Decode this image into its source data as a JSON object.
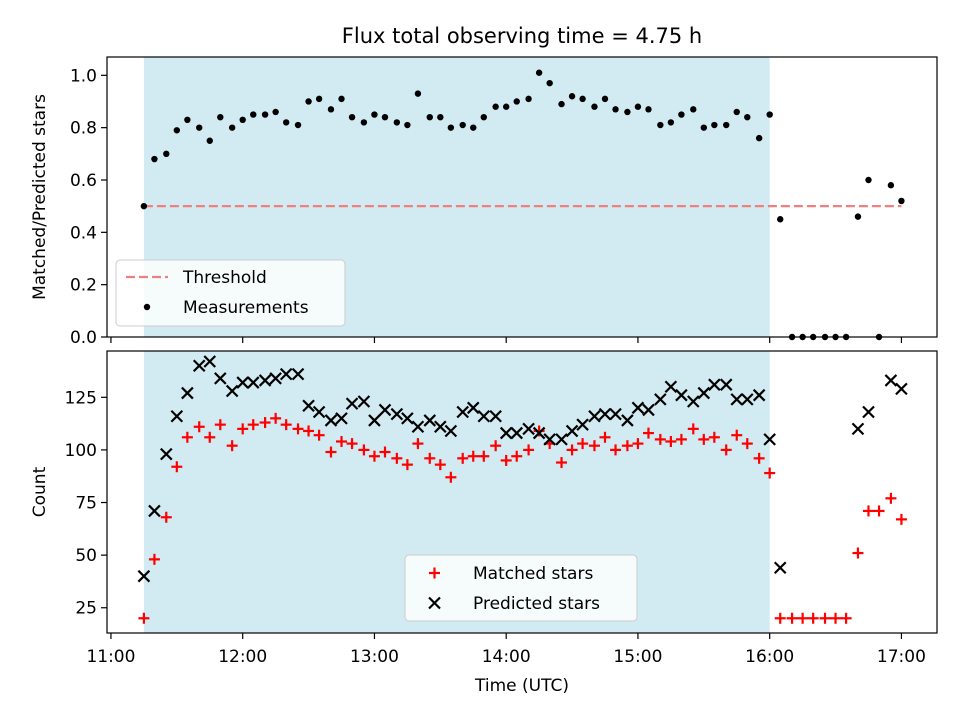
{
  "chart_data": {
    "title": "Flux total observing time = 4.75 h",
    "xlabel": "Time (UTC)",
    "x_unit": "hours (UTC)",
    "xlim": [
      10.97,
      17.27
    ],
    "x_ticks": [
      {
        "value": 11,
        "label": "11:00"
      },
      {
        "value": 12,
        "label": "12:00"
      },
      {
        "value": 13,
        "label": "13:00"
      },
      {
        "value": 14,
        "label": "14:00"
      },
      {
        "value": 15,
        "label": "15:00"
      },
      {
        "value": 16,
        "label": "16:00"
      },
      {
        "value": 17,
        "label": "17:00"
      }
    ],
    "observing_span": [
      11.25,
      16.0
    ],
    "colors": {
      "span": "#add8e6",
      "threshold": "#f08080",
      "measurements": "#000000",
      "matched": "#ff0000",
      "predicted": "#000000"
    },
    "panels": [
      {
        "id": "ratio",
        "type": "scatter",
        "ylabel": "Matched/Predicted stars",
        "ylim": [
          0,
          1.07
        ],
        "y_ticks": [
          "0.0",
          "0.2",
          "0.4",
          "0.6",
          "0.8",
          "1.0"
        ],
        "legend_position": "lower-left",
        "threshold": {
          "name": "Threshold",
          "y": 0.5,
          "x_range": [
            11.25,
            17.0
          ]
        },
        "series": [
          {
            "name": "Measurements",
            "marker": "dot",
            "points": [
              [
                11.25,
                0.5
              ],
              [
                11.33,
                0.68
              ],
              [
                11.42,
                0.7
              ],
              [
                11.5,
                0.79
              ],
              [
                11.58,
                0.83
              ],
              [
                11.67,
                0.8
              ],
              [
                11.75,
                0.75
              ],
              [
                11.83,
                0.84
              ],
              [
                11.92,
                0.8
              ],
              [
                12.0,
                0.83
              ],
              [
                12.08,
                0.85
              ],
              [
                12.17,
                0.85
              ],
              [
                12.25,
                0.86
              ],
              [
                12.33,
                0.82
              ],
              [
                12.42,
                0.81
              ],
              [
                12.5,
                0.9
              ],
              [
                12.58,
                0.91
              ],
              [
                12.67,
                0.87
              ],
              [
                12.75,
                0.91
              ],
              [
                12.83,
                0.84
              ],
              [
                12.92,
                0.82
              ],
              [
                13.0,
                0.85
              ],
              [
                13.08,
                0.84
              ],
              [
                13.17,
                0.82
              ],
              [
                13.25,
                0.81
              ],
              [
                13.33,
                0.93
              ],
              [
                13.42,
                0.84
              ],
              [
                13.5,
                0.84
              ],
              [
                13.58,
                0.8
              ],
              [
                13.67,
                0.81
              ],
              [
                13.75,
                0.8
              ],
              [
                13.83,
                0.84
              ],
              [
                13.92,
                0.88
              ],
              [
                14.0,
                0.88
              ],
              [
                14.08,
                0.9
              ],
              [
                14.17,
                0.91
              ],
              [
                14.25,
                1.01
              ],
              [
                14.33,
                0.97
              ],
              [
                14.42,
                0.89
              ],
              [
                14.5,
                0.92
              ],
              [
                14.58,
                0.91
              ],
              [
                14.67,
                0.88
              ],
              [
                14.75,
                0.91
              ],
              [
                14.83,
                0.87
              ],
              [
                14.92,
                0.86
              ],
              [
                15.0,
                0.88
              ],
              [
                15.08,
                0.87
              ],
              [
                15.17,
                0.81
              ],
              [
                15.25,
                0.82
              ],
              [
                15.33,
                0.85
              ],
              [
                15.42,
                0.87
              ],
              [
                15.5,
                0.8
              ],
              [
                15.58,
                0.81
              ],
              [
                15.67,
                0.81
              ],
              [
                15.75,
                0.86
              ],
              [
                15.83,
                0.84
              ],
              [
                15.92,
                0.76
              ],
              [
                16.0,
                0.85
              ],
              [
                16.08,
                0.45
              ],
              [
                16.17,
                0.0
              ],
              [
                16.25,
                0.0
              ],
              [
                16.33,
                0.0
              ],
              [
                16.42,
                0.0
              ],
              [
                16.5,
                0.0
              ],
              [
                16.58,
                0.0
              ],
              [
                16.67,
                0.46
              ],
              [
                16.75,
                0.6
              ],
              [
                16.83,
                0.0
              ],
              [
                16.92,
                0.58
              ],
              [
                17.0,
                0.52
              ]
            ]
          }
        ]
      },
      {
        "id": "counts",
        "type": "scatter",
        "ylabel": "Count",
        "ylim": [
          13,
          147
        ],
        "y_ticks": [
          "25",
          "50",
          "75",
          "100",
          "125"
        ],
        "legend_position": "lower-center",
        "series": [
          {
            "name": "Matched stars",
            "marker": "plus",
            "points": [
              [
                11.25,
                20
              ],
              [
                11.33,
                48
              ],
              [
                11.42,
                68
              ],
              [
                11.5,
                92
              ],
              [
                11.58,
                106
              ],
              [
                11.67,
                111
              ],
              [
                11.75,
                106
              ],
              [
                11.83,
                112
              ],
              [
                11.92,
                102
              ],
              [
                12.0,
                110
              ],
              [
                12.08,
                112
              ],
              [
                12.17,
                113
              ],
              [
                12.25,
                115
              ],
              [
                12.33,
                112
              ],
              [
                12.42,
                110
              ],
              [
                12.5,
                109
              ],
              [
                12.58,
                107
              ],
              [
                12.67,
                99
              ],
              [
                12.75,
                104
              ],
              [
                12.83,
                103
              ],
              [
                12.92,
                100
              ],
              [
                13.0,
                97
              ],
              [
                13.08,
                99
              ],
              [
                13.17,
                96
              ],
              [
                13.25,
                93
              ],
              [
                13.33,
                103
              ],
              [
                13.42,
                96
              ],
              [
                13.5,
                93
              ],
              [
                13.58,
                87
              ],
              [
                13.67,
                96
              ],
              [
                13.75,
                97
              ],
              [
                13.83,
                97
              ],
              [
                13.92,
                102
              ],
              [
                14.0,
                95
              ],
              [
                14.08,
                97
              ],
              [
                14.17,
                100
              ],
              [
                14.25,
                109
              ],
              [
                14.33,
                103
              ],
              [
                14.42,
                94
              ],
              [
                14.5,
                100
              ],
              [
                14.58,
                103
              ],
              [
                14.67,
                102
              ],
              [
                14.75,
                106
              ],
              [
                14.83,
                100
              ],
              [
                14.92,
                102
              ],
              [
                15.0,
                103
              ],
              [
                15.08,
                108
              ],
              [
                15.17,
                105
              ],
              [
                15.25,
                104
              ],
              [
                15.33,
                105
              ],
              [
                15.42,
                110
              ],
              [
                15.5,
                105
              ],
              [
                15.58,
                106
              ],
              [
                15.67,
                100
              ],
              [
                15.75,
                107
              ],
              [
                15.83,
                103
              ],
              [
                15.92,
                96
              ],
              [
                16.0,
                89
              ],
              [
                16.08,
                20
              ],
              [
                16.17,
                20
              ],
              [
                16.25,
                20
              ],
              [
                16.33,
                20
              ],
              [
                16.42,
                20
              ],
              [
                16.5,
                20
              ],
              [
                16.58,
                20
              ],
              [
                16.67,
                51
              ],
              [
                16.75,
                71
              ],
              [
                16.83,
                71
              ],
              [
                16.92,
                77
              ],
              [
                17.0,
                67
              ]
            ]
          },
          {
            "name": "Predicted stars",
            "marker": "cross",
            "points": [
              [
                11.25,
                40
              ],
              [
                11.33,
                71
              ],
              [
                11.42,
                98
              ],
              [
                11.5,
                116
              ],
              [
                11.58,
                127
              ],
              [
                11.67,
                140
              ],
              [
                11.75,
                142
              ],
              [
                11.83,
                134
              ],
              [
                11.92,
                128
              ],
              [
                12.0,
                132
              ],
              [
                12.08,
                132
              ],
              [
                12.17,
                133
              ],
              [
                12.25,
                134
              ],
              [
                12.33,
                136
              ],
              [
                12.42,
                136
              ],
              [
                12.5,
                121
              ],
              [
                12.58,
                118
              ],
              [
                12.67,
                114
              ],
              [
                12.75,
                115
              ],
              [
                12.83,
                122
              ],
              [
                12.92,
                123
              ],
              [
                13.0,
                114
              ],
              [
                13.08,
                119
              ],
              [
                13.17,
                117
              ],
              [
                13.25,
                115
              ],
              [
                13.33,
                111
              ],
              [
                13.42,
                114
              ],
              [
                13.5,
                111
              ],
              [
                13.58,
                109
              ],
              [
                13.67,
                118
              ],
              [
                13.75,
                120
              ],
              [
                13.83,
                116
              ],
              [
                13.92,
                116
              ],
              [
                14.0,
                108
              ],
              [
                14.08,
                108
              ],
              [
                14.17,
                110
              ],
              [
                14.25,
                108
              ],
              [
                14.33,
                105
              ],
              [
                14.42,
                105
              ],
              [
                14.5,
                109
              ],
              [
                14.58,
                112
              ],
              [
                14.67,
                116
              ],
              [
                14.75,
                117
              ],
              [
                14.83,
                117
              ],
              [
                14.92,
                114
              ],
              [
                15.0,
                120
              ],
              [
                15.08,
                119
              ],
              [
                15.17,
                124
              ],
              [
                15.25,
                130
              ],
              [
                15.33,
                126
              ],
              [
                15.42,
                123
              ],
              [
                15.5,
                127
              ],
              [
                15.58,
                131
              ],
              [
                15.67,
                131
              ],
              [
                15.75,
                124
              ],
              [
                15.83,
                124
              ],
              [
                15.92,
                126
              ],
              [
                16.0,
                105
              ],
              [
                16.08,
                44
              ],
              [
                16.67,
                110
              ],
              [
                16.75,
                118
              ],
              [
                16.92,
                133
              ],
              [
                17.0,
                129
              ]
            ]
          }
        ]
      }
    ]
  }
}
